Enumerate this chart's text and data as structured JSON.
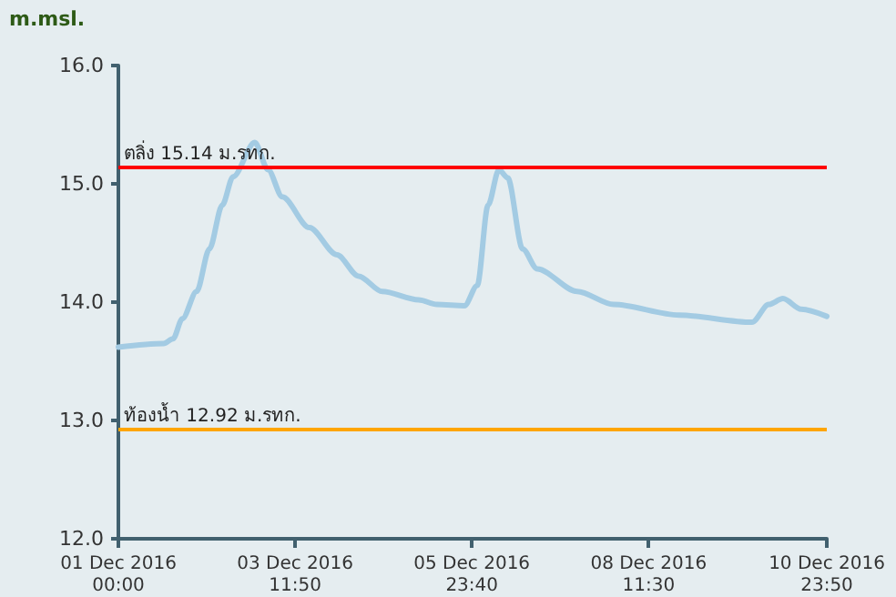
{
  "chart_data": {
    "type": "line",
    "ylabel": "m.msl.",
    "x": [
      "2016-12-01T00:00",
      "2016-12-01T15:20",
      "2016-12-01T18:30",
      "2016-12-01T21:40",
      "2016-12-02T02:30",
      "2016-12-02T06:50",
      "2016-12-02T11:10",
      "2016-12-02T14:50",
      "2016-12-02T22:10",
      "2016-12-03T02:40",
      "2016-12-03T07:30",
      "2016-12-03T16:40",
      "2016-12-04T02:00",
      "2016-12-04T09:20",
      "2016-12-04T17:20",
      "2016-12-05T05:40",
      "2016-12-05T11:50",
      "2016-12-05T21:10",
      "2016-12-06T01:30",
      "2016-12-06T05:10",
      "2016-12-06T08:50",
      "2016-12-06T11:50",
      "2016-12-06T16:50",
      "2016-12-06T21:50",
      "2016-12-07T11:20",
      "2016-12-07T23:40",
      "2016-12-08T21:50",
      "2016-12-09T22:30",
      "2016-12-10T04:10",
      "2016-12-10T09:00",
      "2016-12-10T15:10",
      "2016-12-10T23:50"
    ],
    "series": [
      {
        "color": "#a3cbe3",
        "values": [
          13.62,
          13.65,
          13.69,
          13.86,
          14.09,
          14.45,
          14.82,
          15.06,
          15.35,
          15.12,
          14.89,
          14.63,
          14.4,
          14.22,
          14.09,
          14.02,
          13.98,
          13.97,
          14.14,
          14.82,
          15.12,
          15.05,
          14.45,
          14.28,
          14.09,
          13.98,
          13.89,
          13.83,
          13.98,
          14.03,
          13.94,
          13.88
        ]
      }
    ],
    "xlim": [
      "2016-12-01T00:00",
      "2016-12-10T23:50"
    ],
    "xticks": [
      {
        "value": "2016-12-01T00:00",
        "label": "01 Dec 2016\n00:00"
      },
      {
        "value": "2016-12-03T11:50",
        "label": "03 Dec 2016\n11:50"
      },
      {
        "value": "2016-12-05T23:40",
        "label": "05 Dec 2016\n23:40"
      },
      {
        "value": "2016-12-08T11:30",
        "label": "08 Dec 2016\n11:30"
      },
      {
        "value": "2016-12-10T23:50",
        "label": "10 Dec 2016\n23:50"
      }
    ],
    "ylim": [
      12,
      16
    ],
    "yticks": [
      {
        "value": 12,
        "label": "12.0"
      },
      {
        "value": 13,
        "label": "13.0"
      },
      {
        "value": 14,
        "label": "14.0"
      },
      {
        "value": 15,
        "label": "15.0"
      },
      {
        "value": 16,
        "label": "16.0"
      }
    ],
    "ref_lines": [
      {
        "axis": "y",
        "value": 15.14,
        "label": "ตลิ่ง 15.14 ม.รทก.",
        "color": "#ff0000"
      },
      {
        "axis": "y",
        "value": 12.92,
        "label": "ท้องน้ำ 12.92 ม.รทก.",
        "color": "#ffa500"
      }
    ],
    "grid": false,
    "marker": "none",
    "line_style": "solid"
  }
}
